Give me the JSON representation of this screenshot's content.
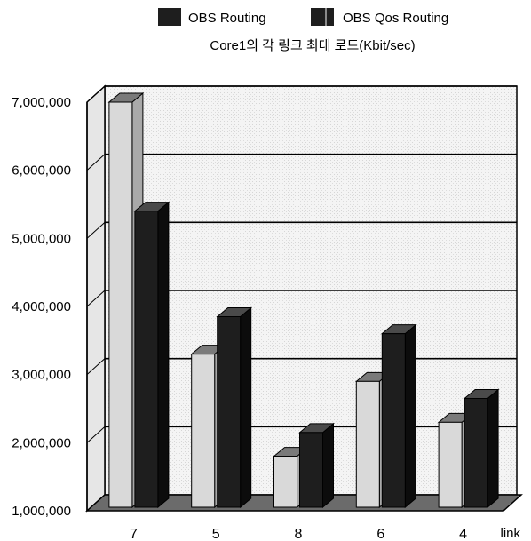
{
  "chart_data": {
    "type": "bar",
    "title": "Core1의 각 링크 최대 로드(Kbit/sec)",
    "xlabel": "link",
    "ylabel": "",
    "categories": [
      "7",
      "5",
      "8",
      "6",
      "4"
    ],
    "series": [
      {
        "name": "OBS Routing",
        "values": [
          7000000,
          3300000,
          1800000,
          2900000,
          2300000
        ]
      },
      {
        "name": "OBS Qos Routing",
        "values": [
          5400000,
          3850000,
          2150000,
          3600000,
          2650000
        ]
      }
    ],
    "yticks": [
      "1,000,000",
      "2,000,000",
      "3,000,000",
      "4,000,000",
      "5,000,000",
      "6,000,000",
      "7,000,000"
    ],
    "ylim": [
      1000000,
      7000000
    ],
    "grid": true,
    "legend": "top",
    "style": "3d",
    "colors": {
      "series1": "#d9d9d9",
      "series2": "#1e1e1e",
      "floor": "#6b6b6b",
      "wall": "#efefef"
    }
  }
}
